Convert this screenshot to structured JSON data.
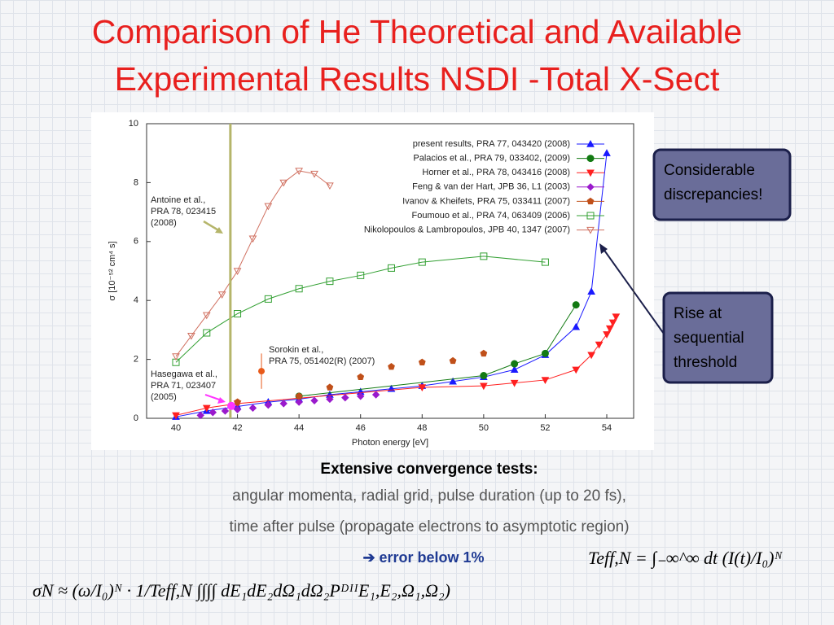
{
  "title": [
    "Comparison of He Theoretical and Available",
    "Experimental Results NSDI -Total X-Sect"
  ],
  "chart_data": {
    "type": "line",
    "xlabel": "Photon energy [eV]",
    "ylabel": "σ [10⁻⁵² cm⁴ s]",
    "xlim": [
      39,
      55
    ],
    "ylim": [
      0,
      10
    ],
    "xticks": [
      40,
      42,
      44,
      46,
      48,
      50,
      52,
      54
    ],
    "yticks": [
      0,
      2,
      4,
      6,
      8,
      10
    ],
    "legend": "upper right",
    "series": [
      {
        "name": "present results, PRA 77, 043420 (2008)",
        "color": "#1a1aff",
        "marker": "triangle-up",
        "line": true,
        "x": [
          40,
          41,
          42,
          43,
          44,
          45,
          46,
          47,
          48,
          49,
          50,
          51,
          52,
          53,
          53.5,
          54
        ],
        "values": [
          0.05,
          0.25,
          0.4,
          0.55,
          0.65,
          0.8,
          0.9,
          1.0,
          1.1,
          1.25,
          1.4,
          1.65,
          2.15,
          3.1,
          4.3,
          9.0
        ]
      },
      {
        "name": "Palacios et al., PRA 79, 033402, (2009)",
        "color": "#137a13",
        "marker": "circle",
        "line": true,
        "x": [
          44,
          50,
          51,
          52,
          53
        ],
        "values": [
          0.75,
          1.45,
          1.85,
          2.2,
          3.85
        ]
      },
      {
        "name": "Horner et al., PRA 78, 043416 (2008)",
        "color": "#ff2020",
        "marker": "triangle-down",
        "line": true,
        "x": [
          40,
          41,
          42,
          48,
          50,
          51,
          52,
          53,
          53.5,
          53.75,
          54,
          54.1,
          54.2,
          54.3
        ],
        "values": [
          0.1,
          0.35,
          0.5,
          1.05,
          1.1,
          1.2,
          1.3,
          1.65,
          2.15,
          2.5,
          2.85,
          3.05,
          3.25,
          3.45
        ]
      },
      {
        "name": "Feng & van der Hart, JPB 36, L1 (2003)",
        "color": "#9a1acc",
        "marker": "diamond",
        "line": false,
        "x": [
          40.8,
          41.2,
          41.6,
          42,
          42.5,
          43,
          43.5,
          44,
          44.5,
          45,
          45.5,
          46,
          46.5
        ],
        "values": [
          0.1,
          0.2,
          0.25,
          0.3,
          0.35,
          0.45,
          0.5,
          0.55,
          0.6,
          0.65,
          0.7,
          0.75,
          0.8
        ]
      },
      {
        "name": "Ivanov & Kheifets, PRA 75, 033411 (2007)",
        "color": "#c0501a",
        "marker": "pentagon",
        "line": false,
        "x": [
          42,
          44,
          45,
          46,
          47,
          48,
          49,
          50
        ],
        "values": [
          0.55,
          0.75,
          1.05,
          1.4,
          1.75,
          1.9,
          1.95,
          2.2
        ]
      },
      {
        "name": "Foumouo et al., PRA 74, 063409 (2006)",
        "color": "#33a033",
        "marker": "square-open",
        "line": true,
        "x": [
          40,
          41,
          42,
          43,
          44,
          45,
          46,
          47,
          48,
          50,
          52
        ],
        "values": [
          1.9,
          2.9,
          3.55,
          4.05,
          4.4,
          4.65,
          4.85,
          5.1,
          5.3,
          5.5,
          5.3
        ]
      },
      {
        "name": "Nikolopoulos & Lambropoulos, JPB 40, 1347 (2007)",
        "color": "#d07060",
        "marker": "triangle-down-open",
        "line": true,
        "x": [
          40,
          40.5,
          41,
          41.5,
          42,
          42.5,
          43,
          43.5,
          44,
          44.5,
          45
        ],
        "values": [
          2.1,
          2.8,
          3.5,
          4.2,
          5.0,
          6.1,
          7.2,
          8.0,
          8.4,
          8.3,
          7.9
        ]
      }
    ],
    "vertical_line": {
      "x": 41.77,
      "color": "#b5b56a"
    },
    "sorokin_point": {
      "x": 42.78,
      "value": 1.6,
      "error": 0.6,
      "color": "#e85a1a"
    },
    "hasegawa_point": {
      "x": 41.8,
      "value": 0.42,
      "color": "#ff33ff"
    },
    "annotations": {
      "antoine": [
        "Antoine et al.,",
        "PRA 78, 023415",
        "(2008)"
      ],
      "sorokin": [
        "Sorokin et al.,",
        "PRA 75, 051402(R) (2007)"
      ],
      "hasegawa": [
        "Hasegawa et al.,",
        "PRA 71, 023407",
        "(2005)"
      ]
    }
  },
  "callouts": [
    [
      "Considerable",
      "discrepancies!"
    ],
    [
      "Rise at",
      "sequential",
      "threshold"
    ]
  ],
  "text": {
    "heading": "Extensive convergence tests:",
    "lines": [
      "angular momenta, radial grid, pulse duration (up to 20 fs),",
      "time after pulse (propagate electrons to asymptotic region)"
    ],
    "result": "➔ error below 1%"
  },
  "formulas": {
    "teff": "Teff,N = ∫₋∞^∞ dt (I(t)/I₀)ᴺ",
    "sigma": "σN ≈ (ω/I₀)ᴺ · 1/Teff,N ∫∫∫∫ dE₁dE₂dΩ₁dΩ₂PᴰᴵᴵE₁,E₂,Ω₁,Ω₂)"
  }
}
